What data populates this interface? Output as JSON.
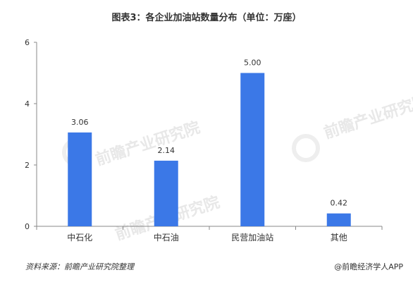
{
  "chart_data": {
    "type": "bar",
    "title": "图表3：各企业加油站数量分布（单位：万座）",
    "categories": [
      "中石化",
      "中石油",
      "民营加油站",
      "其他"
    ],
    "values": [
      3.06,
      2.14,
      5.0,
      0.42
    ],
    "value_labels": [
      "3.06",
      "2.14",
      "5.00",
      "0.42"
    ],
    "ylim": [
      0,
      6
    ],
    "yticks": [
      0,
      2,
      4,
      6
    ],
    "xlabel": "",
    "ylabel": "",
    "grid": false,
    "bar_color": "#3b78e7"
  },
  "footer": {
    "source": "资料来源：前瞻产业研究院整理",
    "credit": "@前瞻经济学人APP"
  },
  "watermark": {
    "brand": "前瞻产业研究院"
  }
}
